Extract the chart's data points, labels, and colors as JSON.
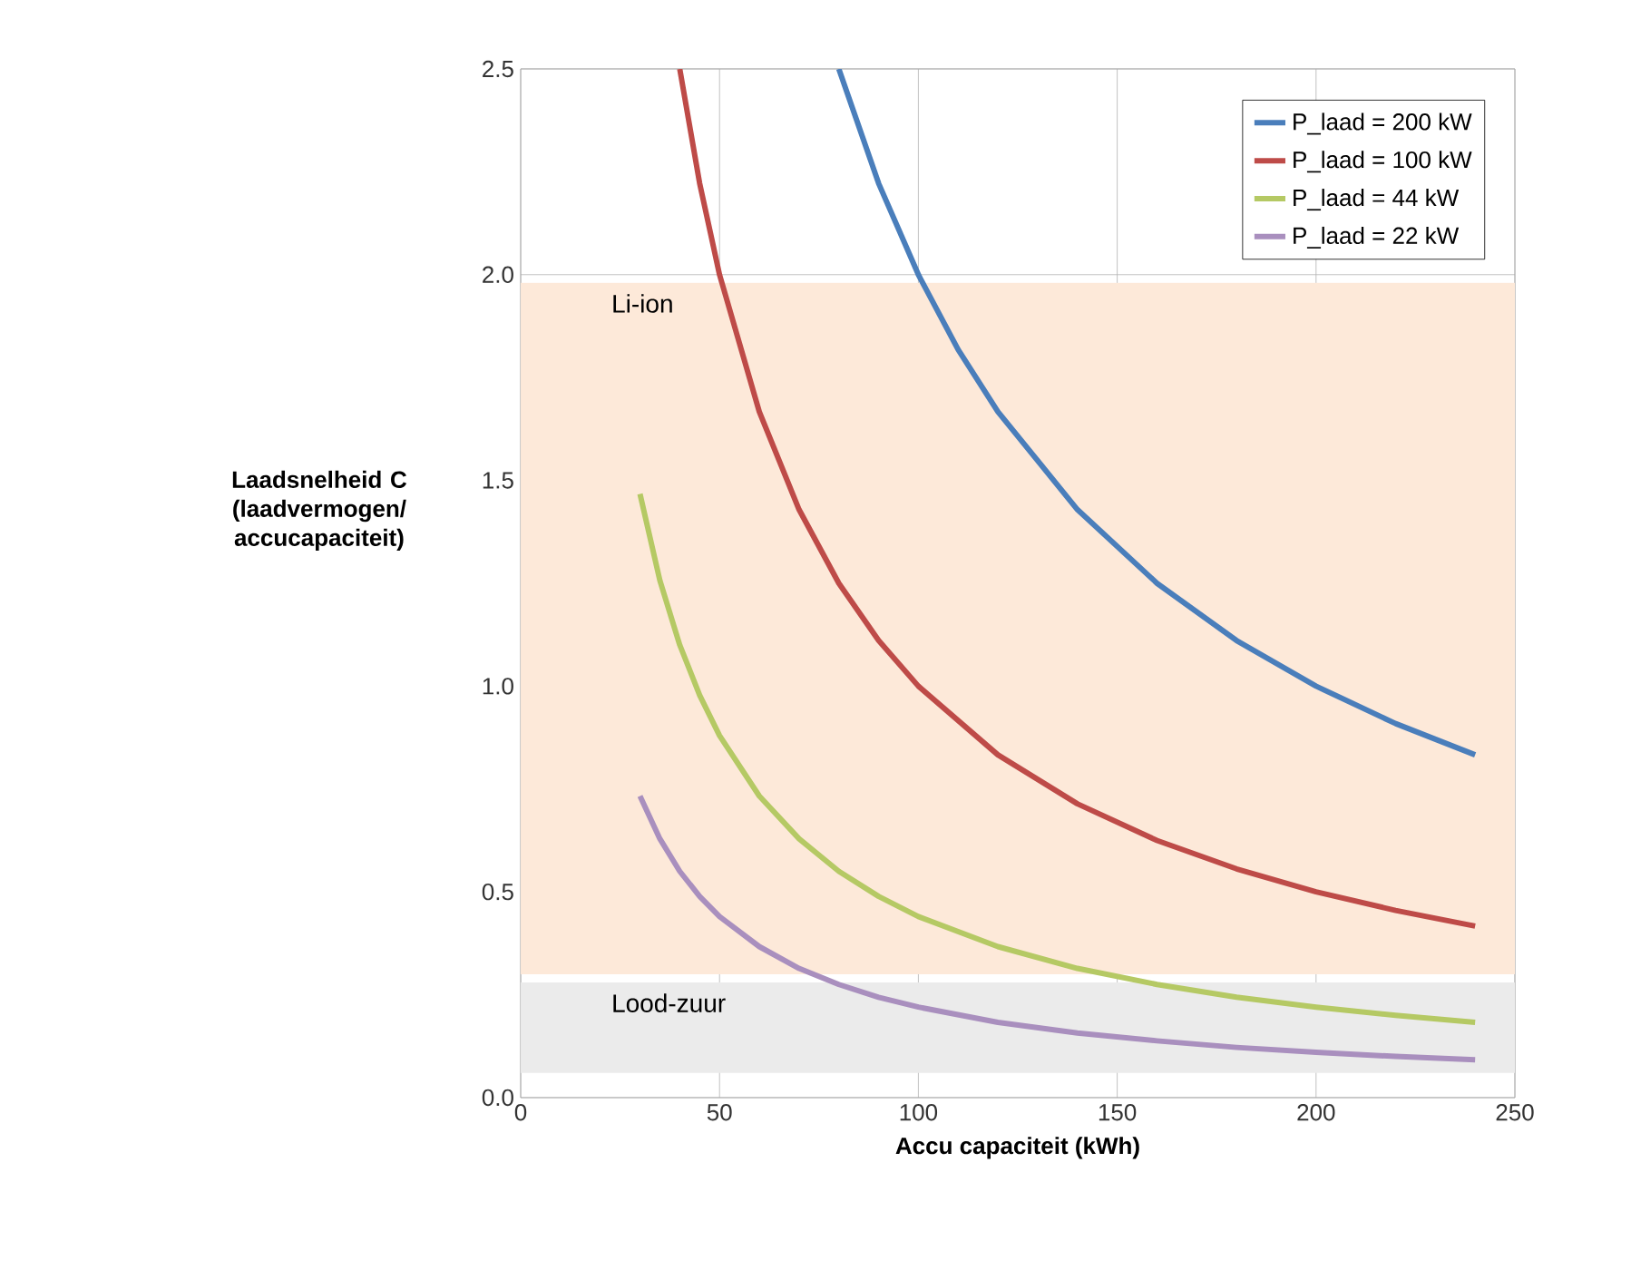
{
  "chart_data": {
    "type": "line",
    "xlabel": "Accu capaciteit (kWh)",
    "ylabel": "Laadsnelheid C (laadvermogen/ accucapaciteit)",
    "xlim": [
      0,
      250
    ],
    "xticks": [
      0,
      50,
      100,
      150,
      200,
      250
    ],
    "ylim": [
      0,
      2.5
    ],
    "yticks": [
      {
        "value": 0,
        "label": "0.0"
      },
      0.5,
      {
        "value": 1,
        "label": "1.0"
      },
      1.5,
      {
        "value": 2,
        "label": "2.0"
      },
      2.5
    ],
    "grid": true,
    "legend": "top right",
    "marker": "none",
    "line_style": "solid",
    "bands": [
      {
        "axis": "y",
        "from": 0.3,
        "to": 1.98,
        "label": "Li-ion",
        "color": "#fde9d9"
      },
      {
        "axis": "y",
        "from": 0.06,
        "to": 0.28,
        "label": "Lood-zuur",
        "color": "#ebebeb"
      }
    ],
    "series": [
      {
        "name": "P_laad = 200 kW",
        "color": "#4a7ebb",
        "x": [
          80,
          90,
          100,
          110,
          120,
          140,
          160,
          180,
          200,
          220,
          240
        ],
        "values": [
          2.5,
          2.222,
          2.0,
          1.818,
          1.667,
          1.429,
          1.25,
          1.111,
          1.0,
          0.909,
          0.833
        ]
      },
      {
        "name": "P_laad = 100 kW",
        "color": "#be4b48",
        "x": [
          40,
          45,
          50,
          60,
          70,
          80,
          90,
          100,
          120,
          140,
          160,
          180,
          200,
          220,
          240
        ],
        "values": [
          2.5,
          2.222,
          2.0,
          1.667,
          1.429,
          1.25,
          1.111,
          1.0,
          0.833,
          0.714,
          0.625,
          0.556,
          0.5,
          0.455,
          0.417
        ]
      },
      {
        "name": "P_laad = 44 kW",
        "color": "#b5c964",
        "x": [
          30,
          35,
          40,
          45,
          50,
          60,
          70,
          80,
          90,
          100,
          120,
          140,
          160,
          180,
          200,
          220,
          240
        ],
        "values": [
          1.467,
          1.257,
          1.1,
          0.978,
          0.88,
          0.733,
          0.629,
          0.55,
          0.489,
          0.44,
          0.367,
          0.314,
          0.275,
          0.244,
          0.22,
          0.2,
          0.183
        ]
      },
      {
        "name": "P_laad = 22 kW",
        "color": "#a98fbe",
        "x": [
          30,
          35,
          40,
          45,
          50,
          60,
          70,
          80,
          90,
          100,
          120,
          140,
          160,
          180,
          200,
          220,
          240
        ],
        "values": [
          0.733,
          0.629,
          0.55,
          0.489,
          0.44,
          0.367,
          0.314,
          0.275,
          0.244,
          0.22,
          0.183,
          0.157,
          0.138,
          0.122,
          0.11,
          0.1,
          0.092
        ]
      }
    ]
  }
}
